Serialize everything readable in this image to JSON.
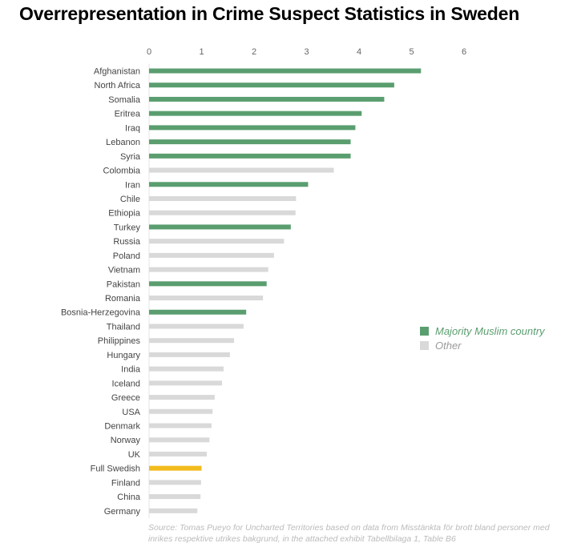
{
  "title": "Overrepresentation in Crime Suspect Statistics in Sweden",
  "colors": {
    "muslim": "#5a9e6f",
    "other": "#d9d9d9",
    "swedish": "#f2bc1d"
  },
  "legend": [
    {
      "label": "Majority Muslim country",
      "color": "#5a9e6f",
      "text_color": "#5a9e6f"
    },
    {
      "label": "Other",
      "color": "#d9d9d9",
      "text_color": "#9a9a9a"
    }
  ],
  "source": {
    "line1": "Source: Tomas Pueyo for Uncharted Territories based on data from Misstänkta för brott bland personer med",
    "line2": "inrikes respektive utrikes bakgrund, in the attached exhibit Tabellbilaga 1, Table B6"
  },
  "chart_data": {
    "type": "bar",
    "orientation": "horizontal",
    "title": "Overrepresentation in Crime Suspect Statistics in Sweden",
    "xlim": [
      0,
      6
    ],
    "xticks": [
      0,
      1,
      2,
      3,
      4,
      5,
      6
    ],
    "x_axis_position": "top",
    "grid": false,
    "legend_position": "right",
    "categories": [
      "Afghanistan",
      "North Africa",
      "Somalia",
      "Eritrea",
      "Iraq",
      "Lebanon",
      "Syria",
      "Colombia",
      "Iran",
      "Chile",
      "Ethiopia",
      "Turkey",
      "Russia",
      "Poland",
      "Vietnam",
      "Pakistan",
      "Romania",
      "Bosnia-Herzegovina",
      "Thailand",
      "Philippines",
      "Hungary",
      "India",
      "Iceland",
      "Greece",
      "USA",
      "Denmark",
      "Norway",
      "UK",
      "Full Swedish",
      "Finland",
      "China",
      "Germany"
    ],
    "values": [
      5.18,
      4.67,
      4.48,
      4.05,
      3.93,
      3.84,
      3.84,
      3.52,
      3.03,
      2.8,
      2.79,
      2.7,
      2.57,
      2.38,
      2.27,
      2.24,
      2.17,
      1.85,
      1.8,
      1.62,
      1.54,
      1.42,
      1.39,
      1.25,
      1.21,
      1.19,
      1.15,
      1.1,
      1.0,
      0.99,
      0.98,
      0.92
    ],
    "groups": [
      "muslim",
      "muslim",
      "muslim",
      "muslim",
      "muslim",
      "muslim",
      "muslim",
      "other",
      "muslim",
      "other",
      "other",
      "muslim",
      "other",
      "other",
      "other",
      "muslim",
      "other",
      "muslim",
      "other",
      "other",
      "other",
      "other",
      "other",
      "other",
      "other",
      "other",
      "other",
      "other",
      "swedish",
      "other",
      "other",
      "other"
    ]
  }
}
